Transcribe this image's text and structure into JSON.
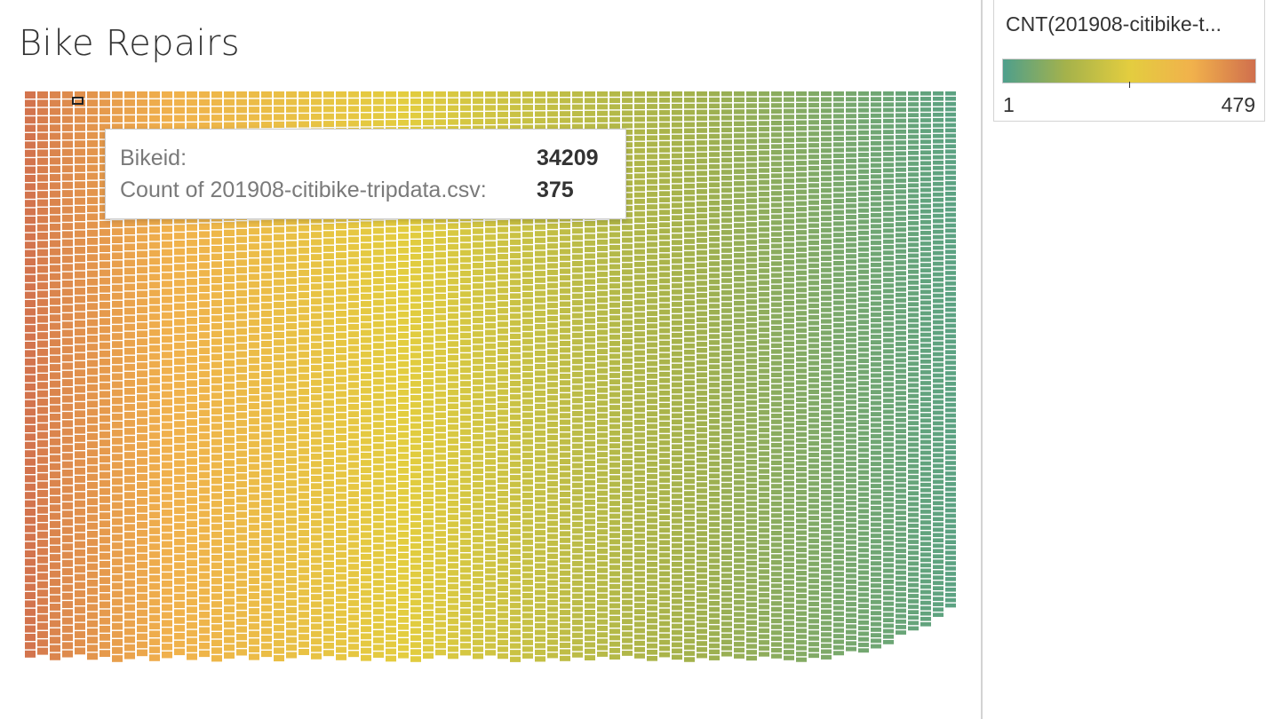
{
  "chart_data": {
    "type": "heatmap",
    "title": "Bike Repairs",
    "legend": {
      "title": "CNT(201908-citibike-t...",
      "min": 1,
      "max": 479,
      "placement": "top-right",
      "colors": [
        "#4e9f8c",
        "#a5b24b",
        "#e3cd3f",
        "#f1b14c",
        "#d06f4d"
      ]
    },
    "tooltip": {
      "rows": [
        {
          "label": "Bikeid:",
          "value": "34209"
        },
        {
          "label": "Count of 201908-citibike-tripdata.csv:",
          "value": "375"
        }
      ]
    }
  }
}
